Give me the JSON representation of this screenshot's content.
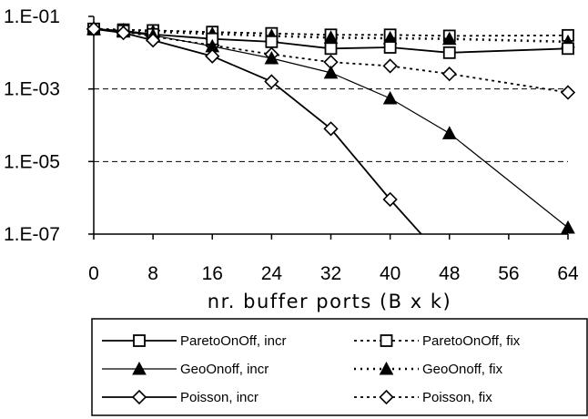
{
  "chart_data": {
    "type": "line",
    "xlabel": "nr. buffer ports (B x k)",
    "ylabel": "",
    "y_scale": "log",
    "xlim": [
      0,
      64
    ],
    "ylim": [
      1e-07,
      0.1
    ],
    "x_ticks": [
      "0",
      "8",
      "16",
      "24",
      "32",
      "40",
      "48",
      "56",
      "64"
    ],
    "y_ticks": [
      "1.E-01",
      "1.E-03",
      "1.E-05",
      "1.E-07"
    ],
    "grid": "horizontal dashed",
    "legend_position": "bottom",
    "series": [
      {
        "name": "ParetoOnOff, incr",
        "marker": "square",
        "style": "solid",
        "weight": "normal",
        "x": [
          0,
          4,
          8,
          16,
          24,
          32,
          40,
          48,
          64
        ],
        "y": [
          0.045,
          0.04,
          0.032,
          0.024,
          0.02,
          0.013,
          0.014,
          0.01,
          0.013
        ]
      },
      {
        "name": "ParetoOnOff, fix",
        "marker": "square",
        "style": "dotted",
        "weight": "normal",
        "x": [
          0,
          4,
          8,
          16,
          24,
          32,
          40,
          48,
          64
        ],
        "y": [
          0.045,
          0.043,
          0.041,
          0.037,
          0.034,
          0.031,
          0.031,
          0.029,
          0.03
        ]
      },
      {
        "name": "GeoOnoff, incr",
        "marker": "triangle",
        "style": "solid",
        "weight": "thin",
        "x": [
          0,
          4,
          8,
          16,
          24,
          32,
          40,
          48,
          64
        ],
        "y": [
          0.045,
          0.038,
          0.03,
          0.015,
          0.007,
          0.0028,
          0.00055,
          6e-05,
          1.5e-07
        ]
      },
      {
        "name": "GeoOnoff, fix",
        "marker": "triangle",
        "style": "dotted",
        "weight": "bold",
        "x": [
          0,
          4,
          8,
          16,
          24,
          32,
          40,
          48,
          64
        ],
        "y": [
          0.045,
          0.042,
          0.038,
          0.033,
          0.029,
          0.026,
          0.025,
          0.024,
          0.02
        ]
      },
      {
        "name": "Poisson, incr",
        "marker": "diamond",
        "style": "solid",
        "weight": "normal",
        "x": [
          0,
          4,
          8,
          16,
          24,
          32,
          40,
          44.2
        ],
        "y": [
          0.045,
          0.035,
          0.022,
          0.008,
          0.0016,
          8e-05,
          9e-07,
          1e-07
        ]
      },
      {
        "name": "Poisson, fix",
        "marker": "diamond",
        "style": "dotted",
        "weight": "normal",
        "x": [
          0,
          4,
          8,
          16,
          24,
          32,
          40,
          48,
          64
        ],
        "y": [
          0.045,
          0.038,
          0.028,
          0.016,
          0.009,
          0.0055,
          0.0043,
          0.0026,
          0.0008
        ]
      }
    ]
  }
}
